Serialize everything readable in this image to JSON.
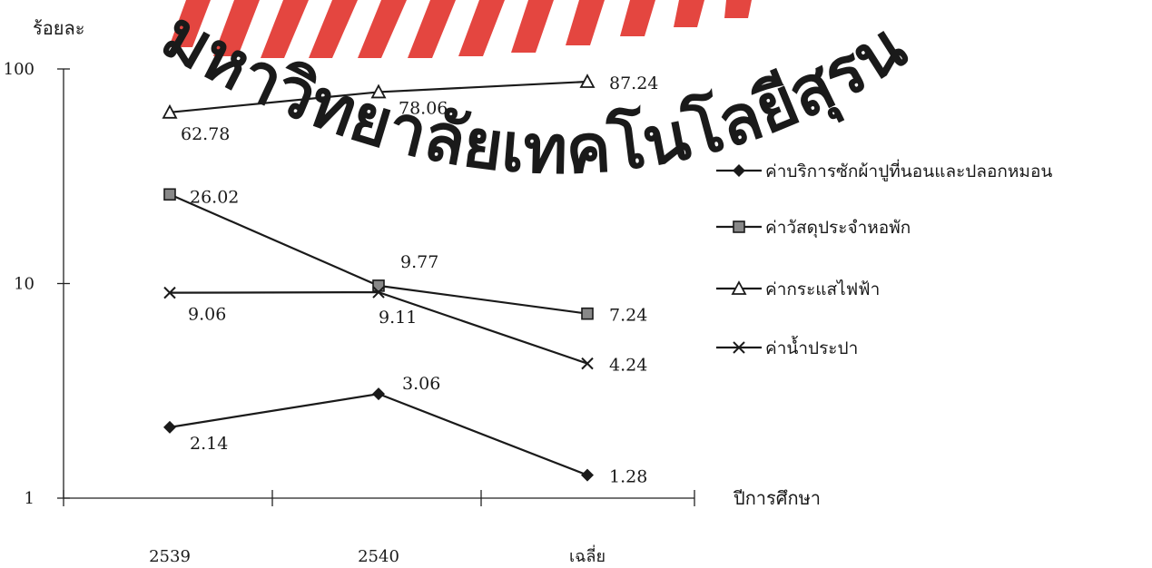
{
  "watermark": {
    "text": "มหาวิทยาลัยเทคโนโลยีสุรนารี",
    "color": "#e8b9b9",
    "emblem_color": "#e0261f"
  },
  "chart_data": {
    "type": "line",
    "y_scale": "log",
    "ylim": [
      1,
      100
    ],
    "grid": false,
    "legend_position": "right",
    "title": "",
    "ylabel": "ร้อยละ",
    "xlabel": "ปีการศึกษา",
    "categories": [
      "2539",
      "2540",
      "เฉลี่ย"
    ],
    "y_ticks": [
      "1",
      "10",
      "100"
    ],
    "series": [
      {
        "name": "ค่าบริการซักผ้าปูที่นอนและปลอกหมอน",
        "marker": "diamond",
        "values": [
          2.14,
          3.06,
          1.28
        ],
        "labels": [
          "2.14",
          "3.06",
          "1.28"
        ]
      },
      {
        "name": "ค่าวัสดุประจำหอพัก",
        "marker": "square",
        "values": [
          26.02,
          9.77,
          7.24
        ],
        "labels": [
          "26.02",
          "9.77",
          "7.24"
        ]
      },
      {
        "name": "ค่ากระแสไฟฟ้า",
        "marker": "triangle",
        "values": [
          62.78,
          78.06,
          87.24
        ],
        "labels": [
          "62.78",
          "78.06",
          "87.24"
        ]
      },
      {
        "name": "ค่าน้ำประปา",
        "marker": "x",
        "values": [
          9.06,
          9.11,
          4.24
        ],
        "labels": [
          "9.06",
          "9.11",
          "4.24"
        ]
      }
    ]
  }
}
